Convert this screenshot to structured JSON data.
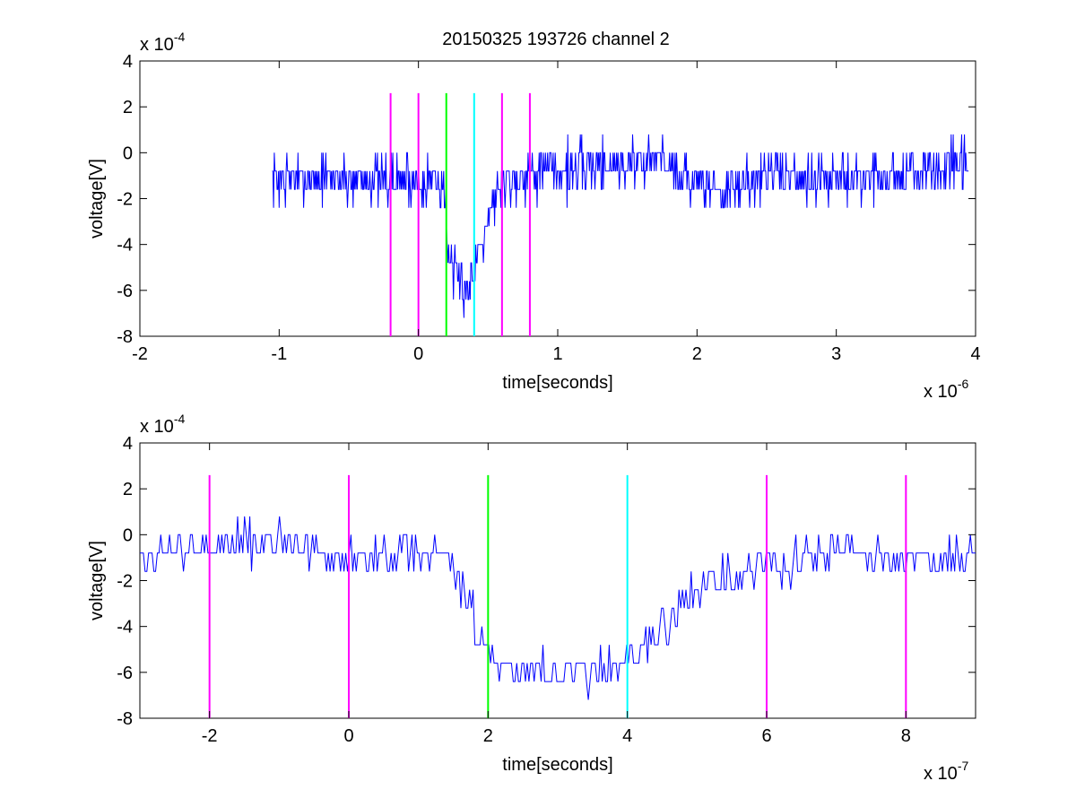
{
  "figure": {
    "title": "20150325 193726 channel 2"
  },
  "chart_data": [
    {
      "type": "line",
      "title": "20150325 193726 channel 2",
      "xlabel": "time[seconds]",
      "ylabel": "voltage[V]",
      "x_exponent_label": "x 10",
      "x_exponent": "-6",
      "y_exponent_label": "x 10",
      "y_exponent": "-4",
      "xlim": [
        -2,
        4
      ],
      "ylim": [
        -8,
        4
      ],
      "xticks": [
        -2,
        -1,
        0,
        1,
        2,
        3,
        4
      ],
      "yticks": [
        -8,
        -6,
        -4,
        -2,
        0,
        2,
        4
      ],
      "grid": false,
      "series": [
        {
          "color": "#0000ff",
          "x_range": [
            -1.05,
            3.95
          ],
          "samples": 1000,
          "profile": [
            [
              -1.05,
              -1.1
            ],
            [
              -0.2,
              -1.1
            ],
            [
              0.1,
              -1.2
            ],
            [
              0.18,
              -1.6
            ],
            [
              0.22,
              -4.6
            ],
            [
              0.25,
              -5.7
            ],
            [
              0.38,
              -5.7
            ],
            [
              0.41,
              -4.6
            ],
            [
              0.5,
              -2.6
            ],
            [
              0.6,
              -1.3
            ],
            [
              0.8,
              -0.8
            ],
            [
              1.3,
              -0.6
            ],
            [
              1.6,
              -0.3
            ],
            [
              1.8,
              -0.3
            ],
            [
              2.0,
              -1.4
            ],
            [
              2.2,
              -1.6
            ],
            [
              2.5,
              -0.9
            ],
            [
              3.0,
              -1.2
            ],
            [
              3.95,
              -0.6
            ]
          ],
          "noise_amplitude": 1.1
        }
      ],
      "vlines": [
        {
          "x": -0.2,
          "color": "#ff00ff"
        },
        {
          "x": 0.0,
          "color": "#ff00ff"
        },
        {
          "x": 0.2,
          "color": "#00ff00"
        },
        {
          "x": 0.4,
          "color": "#00ffff"
        },
        {
          "x": 0.6,
          "color": "#ff00ff"
        },
        {
          "x": 0.8,
          "color": "#ff00ff"
        }
      ],
      "vline_top": 2.6
    },
    {
      "type": "line",
      "title": "",
      "xlabel": "time[seconds]",
      "ylabel": "voltage[V]",
      "x_exponent_label": "x 10",
      "x_exponent": "-7",
      "y_exponent_label": "x 10",
      "y_exponent": "-4",
      "xlim": [
        -3,
        9
      ],
      "ylim": [
        -8,
        4
      ],
      "xticks": [
        -2,
        0,
        2,
        4,
        6,
        8
      ],
      "yticks": [
        -8,
        -6,
        -4,
        -2,
        0,
        2,
        4
      ],
      "grid": false,
      "series": [
        {
          "color": "#0000ff",
          "x_range": [
            -3,
            9
          ],
          "samples": 480,
          "profile": [
            [
              -3.0,
              -1.0
            ],
            [
              -2.0,
              -0.6
            ],
            [
              -1.0,
              -0.4
            ],
            [
              0.0,
              -1.2
            ],
            [
              1.0,
              -0.6
            ],
            [
              1.4,
              -1.0
            ],
            [
              1.7,
              -2.8
            ],
            [
              1.9,
              -4.6
            ],
            [
              2.2,
              -5.6
            ],
            [
              3.0,
              -6.0
            ],
            [
              3.8,
              -5.7
            ],
            [
              4.2,
              -5.2
            ],
            [
              4.5,
              -4.4
            ],
            [
              4.8,
              -3.0
            ],
            [
              5.2,
              -2.0
            ],
            [
              6.0,
              -1.3
            ],
            [
              7.0,
              -0.9
            ],
            [
              8.0,
              -1.2
            ],
            [
              9.0,
              -1.0
            ]
          ],
          "noise_amplitude": 0.9
        }
      ],
      "vlines": [
        {
          "x": -2,
          "color": "#ff00ff"
        },
        {
          "x": 0,
          "color": "#ff00ff"
        },
        {
          "x": 2,
          "color": "#00ff00"
        },
        {
          "x": 4,
          "color": "#00ffff"
        },
        {
          "x": 6,
          "color": "#ff00ff"
        },
        {
          "x": 8,
          "color": "#ff00ff"
        }
      ],
      "vline_top": 2.6
    }
  ]
}
